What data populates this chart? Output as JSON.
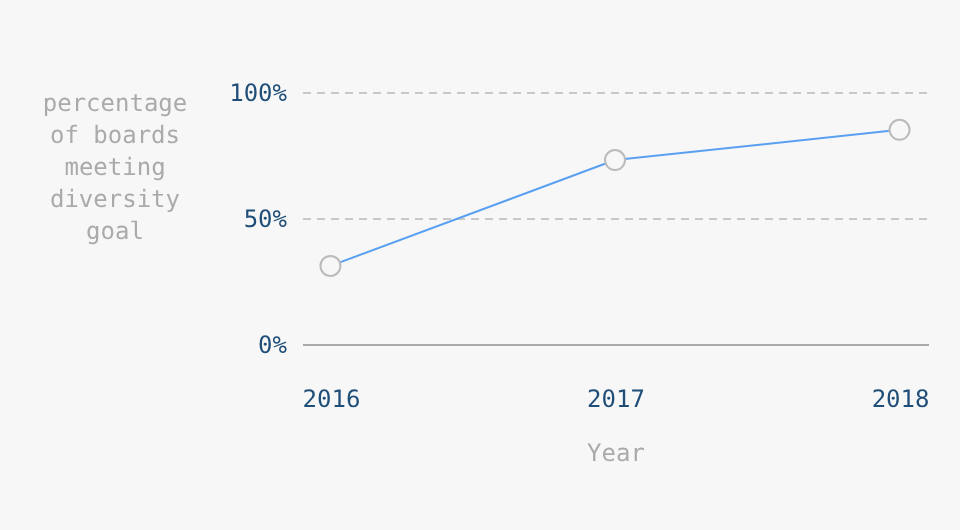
{
  "chart_data": {
    "type": "line",
    "xlabel": "Year",
    "ylabel": "percentage of boards meeting diversity goal",
    "categories": [
      "2016",
      "2017",
      "2018"
    ],
    "series": [
      {
        "color": "#5aa0f0",
        "values": [
          31,
          73,
          85
        ]
      }
    ],
    "ylim": [
      0,
      100
    ],
    "yticks": [
      {
        "value": 0,
        "label": "0%"
      },
      {
        "value": 50,
        "label": "50%"
      },
      {
        "value": 100,
        "label": "100%"
      }
    ],
    "grid": "y",
    "marker": "circle",
    "line_style": "solid"
  }
}
